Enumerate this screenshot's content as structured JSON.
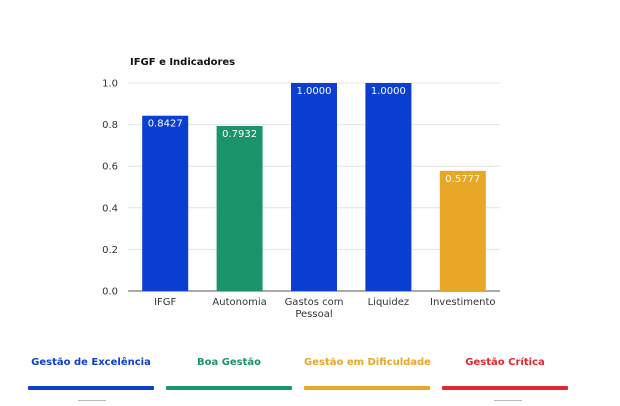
{
  "chart_data": {
    "type": "bar",
    "title": "IFGF e Indicadores",
    "categories": [
      "IFGF",
      "Autonomia",
      "Gastos com Pessoal",
      "Liquidez",
      "Investimento"
    ],
    "category_lines": [
      [
        "IFGF"
      ],
      [
        "Autonomia"
      ],
      [
        "Gastos com",
        "Pessoal"
      ],
      [
        "Liquidez"
      ],
      [
        "Investimento"
      ]
    ],
    "values": [
      0.8427,
      0.7932,
      1.0,
      1.0,
      0.5777
    ],
    "data_labels": [
      "0.8427",
      "0.7932",
      "1.0000",
      "1.0000",
      "0.5777"
    ],
    "bar_colors": [
      "#0a3fd2",
      "#1b936b",
      "#0a3fd2",
      "#0a3fd2",
      "#e8a726"
    ],
    "yticks": [
      "1.0",
      "0.8",
      "0.6",
      "0.4",
      "0.2",
      "0.0"
    ],
    "ylim": [
      0,
      1.0
    ],
    "xlabel": "",
    "ylabel": "",
    "grid": true
  },
  "legend": {
    "items": [
      {
        "label": "Gestão de Excelência",
        "color": "#0a3fd2"
      },
      {
        "label": "Boa Gestão",
        "color": "#1b936b"
      },
      {
        "label": "Gestão em Dificuldade",
        "color": "#e8a726"
      },
      {
        "label": "Gestão Crítica",
        "color": "#e0282e"
      }
    ]
  }
}
